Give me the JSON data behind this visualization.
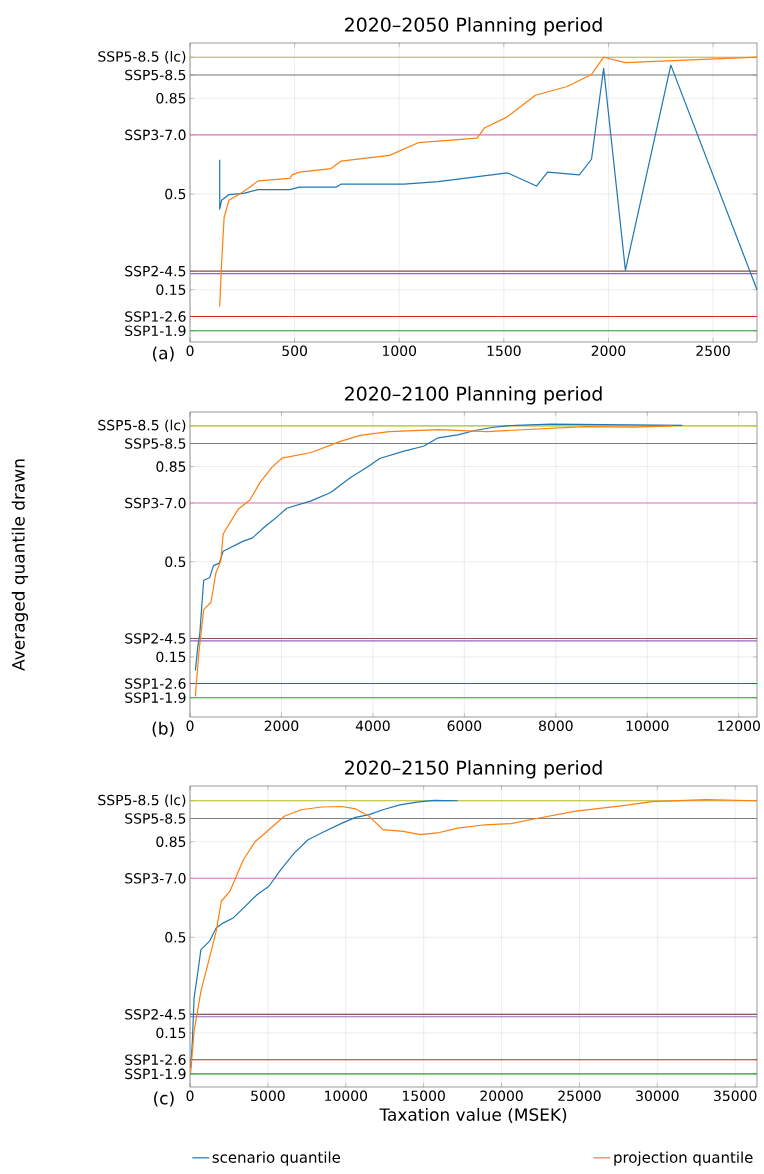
{
  "chart_data": [
    {
      "type": "line",
      "title": "2020–2050 Planning period",
      "annotations": [
        "(a)"
      ],
      "grid": true,
      "xlim": [
        0,
        2710
      ],
      "xticks": [
        0,
        500,
        1000,
        1500,
        2000,
        2500
      ],
      "ylim": [
        -0.041,
        1.052
      ],
      "yticks": [
        {
          "value": 1.0,
          "label": "SSP5-8.5 (lc)"
        },
        {
          "value": 0.935,
          "label": "SSP5-8.5"
        },
        0.85,
        {
          "value": 0.716,
          "label": "SSP3-7.0"
        },
        0.5,
        {
          "value": 0.218,
          "label": "SSP2-4.5"
        },
        0.15,
        {
          "value": 0.052,
          "label": "SSP1-2.6"
        },
        {
          "value": 0.0,
          "label": "SSP1-1.9"
        }
      ],
      "ref_lines": [
        {
          "axis": "y",
          "value": 1.0,
          "color": "#bcbd22"
        },
        {
          "axis": "y",
          "value": 0.935,
          "color": "#7f7f7f"
        },
        {
          "axis": "y",
          "value": 0.716,
          "color": "#e377c2"
        },
        {
          "axis": "y",
          "value": 0.218,
          "color": "#8c564b"
        },
        {
          "axis": "y",
          "value": 0.209,
          "color": "#9467bd"
        },
        {
          "axis": "y",
          "value": 0.052,
          "color": "#d62728"
        },
        {
          "axis": "y",
          "value": 0.0,
          "color": "#2ca02c"
        }
      ],
      "series": [
        {
          "color": "#1f77b4",
          "x": [
            142,
            142,
            151,
            186,
            256,
            326,
            477,
            523,
            698,
            721,
            1023,
            1186,
            1517,
            1656,
            1709,
            1861,
            1919,
            1977,
            2081,
            2298,
            2710
          ],
          "values": [
            0.625,
            0.445,
            0.477,
            0.498,
            0.502,
            0.516,
            0.516,
            0.525,
            0.525,
            0.536,
            0.536,
            0.545,
            0.577,
            0.529,
            0.58,
            0.57,
            0.627,
            0.959,
            0.221,
            0.971,
            0.15
          ]
        },
        {
          "color": "#ff7f0e",
          "x": [
            142,
            151,
            163,
            186,
            233,
            279,
            326,
            477,
            488,
            523,
            674,
            721,
            954,
            1093,
            1372,
            1407,
            1512,
            1651,
            1803,
            1919,
            1977,
            2081,
            2710
          ],
          "values": [
            0.089,
            0.245,
            0.414,
            0.477,
            0.498,
            0.521,
            0.548,
            0.557,
            0.57,
            0.58,
            0.593,
            0.62,
            0.641,
            0.688,
            0.704,
            0.741,
            0.78,
            0.861,
            0.893,
            0.937,
            1.0,
            0.98,
            1.0
          ]
        }
      ]
    },
    {
      "type": "line",
      "title": "2020–2100 Planning period",
      "ylabel": "Averaged quantile drawn",
      "annotations": [
        "(b)"
      ],
      "grid": true,
      "xlim": [
        0,
        12400
      ],
      "xticks": [
        0,
        2000,
        4000,
        6000,
        8000,
        10000,
        12000
      ],
      "ylim": [
        -0.071,
        1.051
      ],
      "yticks": [
        {
          "value": 1.0,
          "label": "SSP5-8.5 (lc)"
        },
        {
          "value": 0.935,
          "label": "SSP5-8.5"
        },
        0.85,
        {
          "value": 0.716,
          "label": "SSP3-7.0"
        },
        0.5,
        {
          "value": 0.218,
          "label": "SSP2-4.5"
        },
        0.15,
        {
          "value": 0.052,
          "label": "SSP1-2.6"
        },
        {
          "value": 0.0,
          "label": "SSP1-1.9"
        }
      ],
      "ref_lines": [
        {
          "axis": "y",
          "value": 1.0,
          "color": "#bcbd22"
        },
        {
          "axis": "y",
          "value": 0.935,
          "color": "#7f7f7f"
        },
        {
          "axis": "y",
          "value": 0.716,
          "color": "#e377c2"
        },
        {
          "axis": "y",
          "value": 0.218,
          "color": "#8c564b"
        },
        {
          "axis": "y",
          "value": 0.209,
          "color": "#9467bd"
        },
        {
          "axis": "y",
          "value": 0.052,
          "color": "#d62728"
        },
        {
          "axis": "y",
          "value": 0.0,
          "color": "#2ca02c"
        }
      ],
      "series": [
        {
          "color": "#1f77b4",
          "x": [
            118,
            171,
            214,
            299,
            427,
            513,
            641,
            726,
            1154,
            1368,
            1635,
            1902,
            2115,
            2650,
            3077,
            3504,
            3932,
            4145,
            4679,
            5107,
            5427,
            5855,
            6229,
            6603,
            6923,
            7137,
            7885,
            10769
          ],
          "values": [
            0.1,
            0.189,
            0.234,
            0.432,
            0.441,
            0.486,
            0.495,
            0.539,
            0.575,
            0.588,
            0.629,
            0.665,
            0.697,
            0.724,
            0.755,
            0.809,
            0.854,
            0.88,
            0.907,
            0.925,
            0.956,
            0.967,
            0.983,
            0.994,
            1.0,
            1.002,
            1.006,
            1.002
          ]
        },
        {
          "color": "#ff7f0e",
          "x": [
            118,
            192,
            299,
            459,
            566,
            673,
            726,
            1047,
            1314,
            1528,
            1795,
            2009,
            2650,
            3291,
            3718,
            4359,
            5427,
            6496,
            7564,
            8632,
            9701,
            10556
          ],
          "values": [
            0.005,
            0.163,
            0.324,
            0.351,
            0.459,
            0.504,
            0.602,
            0.692,
            0.728,
            0.791,
            0.848,
            0.881,
            0.902,
            0.943,
            0.965,
            0.979,
            0.986,
            0.979,
            0.988,
            0.997,
            0.995,
            1.0
          ]
        }
      ]
    },
    {
      "type": "line",
      "title": "2020–2150 Planning period",
      "xlabel": "Taxation value (MSEK)",
      "annotations": [
        "(c)"
      ],
      "grid": true,
      "legend": "bottom",
      "xlim": [
        0,
        36400
      ],
      "xticks": [
        0,
        5000,
        10000,
        15000,
        20000,
        25000,
        30000,
        35000
      ],
      "ylim": [
        -0.048,
        1.054
      ],
      "yticks": [
        {
          "value": 1.0,
          "label": "SSP5-8.5 (lc)"
        },
        {
          "value": 0.935,
          "label": "SSP5-8.5"
        },
        0.85,
        {
          "value": 0.716,
          "label": "SSP3-7.0"
        },
        0.5,
        {
          "value": 0.218,
          "label": "SSP2-4.5"
        },
        0.15,
        {
          "value": 0.052,
          "label": "SSP1-2.6"
        },
        {
          "value": 0.0,
          "label": "SSP1-1.9"
        }
      ],
      "ref_lines": [
        {
          "axis": "y",
          "value": 1.0,
          "color": "#bcbd22"
        },
        {
          "axis": "y",
          "value": 0.935,
          "color": "#7f7f7f"
        },
        {
          "axis": "y",
          "value": 0.716,
          "color": "#e377c2"
        },
        {
          "axis": "y",
          "value": 0.218,
          "color": "#8c564b"
        },
        {
          "axis": "y",
          "value": 0.209,
          "color": "#9467bd"
        },
        {
          "axis": "y",
          "value": 0.052,
          "color": "#d62728"
        },
        {
          "axis": "y",
          "value": 0.0,
          "color": "#2ca02c"
        }
      ],
      "series": [
        {
          "name": "scenario quantile",
          "color": "#1f77b4",
          "x": [
            44,
            153,
            262,
            480,
            699,
            1245,
            1681,
            2118,
            2773,
            3428,
            4301,
            5066,
            5830,
            6703,
            7576,
            8668,
            9760,
            10633,
            11507,
            12380,
            13472,
            14563,
            15655,
            17183
          ],
          "values": [
            0.022,
            0.12,
            0.278,
            0.363,
            0.455,
            0.485,
            0.534,
            0.552,
            0.571,
            0.607,
            0.656,
            0.687,
            0.748,
            0.809,
            0.857,
            0.888,
            0.918,
            0.939,
            0.949,
            0.967,
            0.985,
            0.995,
            1.001,
            1.0
          ]
        },
        {
          "name": "projection quantile",
          "color": "#ff7f0e",
          "x": [
            44,
            262,
            699,
            1245,
            1681,
            2009,
            2555,
            3428,
            4192,
            4956,
            6048,
            7140,
            8450,
            9760,
            10633,
            11507,
            12380,
            13690,
            14782,
            15873,
            17183,
            18930,
            20601,
            22166,
            24671,
            27802,
            29681,
            33125,
            36400
          ],
          "values": [
            0.004,
            0.156,
            0.302,
            0.424,
            0.522,
            0.632,
            0.668,
            0.784,
            0.851,
            0.888,
            0.943,
            0.967,
            0.977,
            0.979,
            0.97,
            0.943,
            0.894,
            0.888,
            0.876,
            0.882,
            0.9,
            0.912,
            0.916,
            0.934,
            0.961,
            0.982,
            0.997,
            1.004,
            1.0
          ]
        }
      ]
    }
  ]
}
